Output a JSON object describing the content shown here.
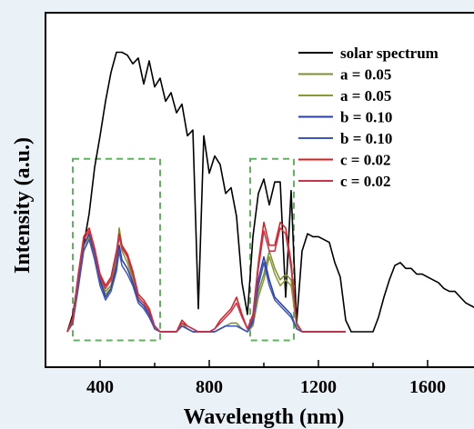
{
  "chart_data": {
    "type": "line",
    "xlabel": "Wavelength (nm)",
    "ylabel": "Intensity (a.u.)",
    "xlim": [
      200,
      1800
    ],
    "ylim": [
      0,
      100
    ],
    "xticks": [
      400,
      800,
      1200,
      1600
    ],
    "grid": false,
    "legend_placement": "top-right",
    "series": [
      {
        "name": "solar spectrum",
        "color": "#000000",
        "x": [
          280,
          300,
          320,
          340,
          360,
          380,
          400,
          420,
          440,
          460,
          480,
          500,
          520,
          540,
          560,
          580,
          600,
          620,
          640,
          660,
          680,
          700,
          720,
          740,
          760,
          780,
          800,
          820,
          840,
          860,
          880,
          900,
          920,
          940,
          960,
          980,
          1000,
          1020,
          1040,
          1060,
          1080,
          1100,
          1120,
          1140,
          1160,
          1180,
          1200,
          1220,
          1240,
          1260,
          1280,
          1300,
          1320,
          1340,
          1360,
          1380,
          1400,
          1420,
          1440,
          1460,
          1480,
          1500,
          1520,
          1540,
          1560,
          1580,
          1600,
          1620,
          1640,
          1660,
          1680,
          1700,
          1720,
          1740,
          1760,
          1780,
          1800
        ],
        "y": [
          0,
          6,
          18,
          30,
          41,
          57,
          68,
          80,
          90,
          97,
          97,
          96,
          93,
          95,
          86,
          94,
          85,
          88,
          80,
          83,
          76,
          79,
          68,
          70,
          8,
          68,
          55,
          61,
          58,
          48,
          50,
          40,
          17,
          6,
          33,
          48,
          53,
          44,
          52,
          52,
          12,
          49,
          3,
          28,
          34,
          33,
          33,
          32,
          31,
          24,
          19,
          4,
          0,
          0,
          0,
          0,
          0,
          5,
          12,
          18,
          23,
          24,
          22,
          22,
          20,
          20,
          19,
          18,
          17,
          15,
          14,
          14,
          12,
          10,
          9,
          8,
          7
        ]
      },
      {
        "name": "a = 0.05",
        "color": "#7d8f2c",
        "x": [
          280,
          300,
          320,
          340,
          360,
          380,
          400,
          420,
          440,
          460,
          470,
          480,
          500,
          520,
          540,
          560,
          580,
          600,
          620,
          640,
          660,
          680,
          700,
          720,
          740,
          760,
          780,
          800,
          820,
          840,
          860,
          880,
          900,
          920,
          940,
          960,
          980,
          1000,
          1020,
          1040,
          1060,
          1080,
          1100,
          1120,
          1140,
          1160,
          1180,
          1200,
          1220,
          1240,
          1260,
          1280,
          1300
        ],
        "y": [
          0,
          4,
          18,
          30,
          34,
          28,
          18,
          14,
          16,
          26,
          36,
          30,
          26,
          19,
          12,
          10,
          7,
          1,
          0,
          0,
          0,
          0,
          3,
          1,
          0,
          0,
          0,
          0,
          0,
          1,
          2,
          3,
          3,
          1,
          0,
          3,
          14,
          20,
          28,
          22,
          18,
          20,
          18,
          3,
          0,
          0,
          0,
          0,
          0,
          0,
          0,
          0,
          0
        ]
      },
      {
        "name": "a = 0.05",
        "color": "#8a9a32",
        "x": [
          280,
          300,
          320,
          340,
          360,
          380,
          400,
          420,
          440,
          460,
          470,
          480,
          500,
          520,
          540,
          560,
          580,
          600,
          620,
          640,
          660,
          680,
          700,
          720,
          740,
          760,
          780,
          800,
          820,
          840,
          860,
          880,
          900,
          920,
          940,
          960,
          980,
          1000,
          1020,
          1040,
          1060,
          1080,
          1100,
          1120,
          1140,
          1160,
          1180,
          1200,
          1220,
          1240,
          1260,
          1280,
          1300
        ],
        "y": [
          0,
          3,
          16,
          28,
          33,
          27,
          17,
          13,
          15,
          24,
          34,
          28,
          24,
          18,
          11,
          9,
          6,
          1,
          0,
          0,
          0,
          0,
          2,
          1,
          0,
          0,
          0,
          0,
          0,
          1,
          2,
          3,
          3,
          1,
          0,
          2,
          12,
          18,
          26,
          20,
          16,
          18,
          16,
          2,
          0,
          0,
          0,
          0,
          0,
          0,
          0,
          0,
          0
        ]
      },
      {
        "name": "b = 0.10",
        "color": "#2b3fa8",
        "x": [
          280,
          300,
          320,
          340,
          360,
          380,
          400,
          420,
          440,
          460,
          470,
          480,
          500,
          520,
          540,
          560,
          580,
          600,
          620,
          640,
          660,
          680,
          700,
          720,
          740,
          760,
          780,
          800,
          820,
          840,
          860,
          880,
          900,
          920,
          940,
          960,
          980,
          1000,
          1020,
          1040,
          1060,
          1080,
          1100,
          1120,
          1140,
          1160,
          1180,
          1200,
          1220,
          1240,
          1260,
          1280,
          1300
        ],
        "y": [
          0,
          4,
          17,
          30,
          34,
          27,
          18,
          12,
          15,
          23,
          30,
          25,
          22,
          17,
          11,
          9,
          6,
          1,
          0,
          0,
          0,
          0,
          2,
          1,
          0,
          0,
          0,
          0,
          0,
          1,
          2,
          2,
          2,
          1,
          0,
          4,
          18,
          26,
          18,
          12,
          10,
          8,
          6,
          1,
          0,
          0,
          0,
          0,
          0,
          0,
          0,
          0,
          0
        ]
      },
      {
        "name": "b = 0.10",
        "color": "#3c55c0",
        "x": [
          280,
          300,
          320,
          340,
          360,
          380,
          400,
          420,
          440,
          460,
          470,
          480,
          500,
          520,
          540,
          560,
          580,
          600,
          620,
          640,
          660,
          680,
          700,
          720,
          740,
          760,
          780,
          800,
          820,
          840,
          860,
          880,
          900,
          920,
          940,
          960,
          980,
          1000,
          1020,
          1040,
          1060,
          1080,
          1100,
          1120,
          1140,
          1160,
          1180,
          1200,
          1220,
          1240,
          1260,
          1280,
          1300
        ],
        "y": [
          0,
          3,
          15,
          28,
          32,
          25,
          16,
          11,
          14,
          21,
          28,
          23,
          20,
          16,
          10,
          8,
          5,
          1,
          0,
          0,
          0,
          0,
          2,
          1,
          0,
          0,
          0,
          0,
          0,
          1,
          2,
          2,
          2,
          1,
          0,
          3,
          16,
          24,
          16,
          11,
          9,
          7,
          5,
          1,
          0,
          0,
          0,
          0,
          0,
          0,
          0,
          0,
          0
        ]
      },
      {
        "name": "c = 0.02",
        "color": "#e01b1b",
        "x": [
          280,
          300,
          320,
          340,
          360,
          380,
          400,
          420,
          440,
          460,
          470,
          480,
          500,
          520,
          540,
          560,
          580,
          600,
          620,
          640,
          660,
          680,
          700,
          720,
          740,
          760,
          780,
          800,
          820,
          840,
          860,
          880,
          900,
          920,
          940,
          960,
          980,
          1000,
          1020,
          1040,
          1060,
          1080,
          1100,
          1120,
          1140,
          1160,
          1180,
          1200,
          1220,
          1240,
          1260,
          1280,
          1300
        ],
        "y": [
          0,
          5,
          20,
          33,
          36,
          29,
          20,
          16,
          19,
          28,
          34,
          30,
          27,
          21,
          13,
          11,
          8,
          2,
          0,
          0,
          0,
          0,
          4,
          2,
          1,
          0,
          0,
          0,
          1,
          4,
          6,
          8,
          12,
          6,
          1,
          6,
          24,
          38,
          30,
          30,
          38,
          36,
          24,
          3,
          0,
          0,
          0,
          0,
          0,
          0,
          0,
          0,
          0
        ]
      },
      {
        "name": "c = 0.02",
        "color": "#c8324a",
        "x": [
          280,
          300,
          320,
          340,
          360,
          380,
          400,
          420,
          440,
          460,
          470,
          480,
          500,
          520,
          540,
          560,
          580,
          600,
          620,
          640,
          660,
          680,
          700,
          720,
          740,
          760,
          780,
          800,
          820,
          840,
          860,
          880,
          900,
          920,
          940,
          960,
          980,
          1000,
          1020,
          1040,
          1060,
          1080,
          1100,
          1120,
          1140,
          1160,
          1180,
          1200,
          1220,
          1240,
          1260,
          1280,
          1300
        ],
        "y": [
          0,
          4,
          19,
          32,
          35,
          28,
          19,
          15,
          18,
          27,
          33,
          29,
          26,
          20,
          12,
          10,
          7,
          2,
          0,
          0,
          0,
          0,
          3,
          2,
          1,
          0,
          0,
          0,
          1,
          3,
          5,
          7,
          10,
          5,
          1,
          5,
          22,
          35,
          28,
          28,
          36,
          34,
          22,
          3,
          0,
          0,
          0,
          0,
          0,
          0,
          0,
          0,
          0
        ]
      }
    ],
    "annotations": [
      {
        "type": "dashed-box",
        "color": "#5fb35f",
        "x_range": [
          300,
          620
        ],
        "y_range": [
          -3,
          60
        ]
      },
      {
        "type": "dashed-box",
        "color": "#5fb35f",
        "x_range": [
          950,
          1110
        ],
        "y_range": [
          -3,
          60
        ]
      }
    ]
  }
}
